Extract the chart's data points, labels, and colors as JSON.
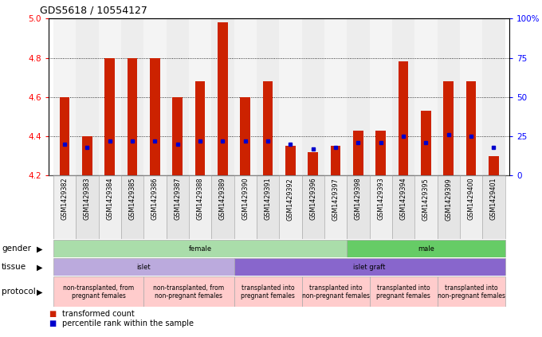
{
  "title": "GDS5618 / 10554127",
  "samples": [
    "GSM1429382",
    "GSM1429383",
    "GSM1429384",
    "GSM1429385",
    "GSM1429386",
    "GSM1429387",
    "GSM1429388",
    "GSM1429389",
    "GSM1429390",
    "GSM1429391",
    "GSM1429392",
    "GSM1429396",
    "GSM1429397",
    "GSM1429398",
    "GSM1429393",
    "GSM1429394",
    "GSM1429395",
    "GSM1429399",
    "GSM1429400",
    "GSM1429401"
  ],
  "transformed_count": [
    4.6,
    4.4,
    4.8,
    4.8,
    4.8,
    4.6,
    4.68,
    4.98,
    4.6,
    4.68,
    4.35,
    4.32,
    4.35,
    4.43,
    4.43,
    4.78,
    4.53,
    4.68,
    4.68,
    4.3
  ],
  "percentile": [
    20,
    18,
    22,
    22,
    22,
    20,
    22,
    22,
    22,
    22,
    20,
    17,
    18,
    21,
    21,
    25,
    21,
    26,
    25,
    18
  ],
  "ylim": [
    4.2,
    5.0
  ],
  "yticks": [
    4.2,
    4.4,
    4.6,
    4.8,
    5.0
  ],
  "right_yticks": [
    0,
    25,
    50,
    75,
    100
  ],
  "right_ylabels": [
    "0",
    "25",
    "50",
    "75",
    "100%"
  ],
  "bar_color": "#cc2200",
  "dot_color": "#0000cc",
  "bar_width": 0.45,
  "gender_regions": [
    {
      "label": "female",
      "start": 0,
      "end": 13,
      "color": "#aaddaa"
    },
    {
      "label": "male",
      "start": 13,
      "end": 20,
      "color": "#66cc66"
    }
  ],
  "tissue_regions": [
    {
      "label": "islet",
      "start": 0,
      "end": 8,
      "color": "#bbaadd"
    },
    {
      "label": "islet graft",
      "start": 8,
      "end": 20,
      "color": "#8866cc"
    }
  ],
  "protocol_regions": [
    {
      "label": "non-transplanted, from\npregnant females",
      "start": 0,
      "end": 4,
      "color": "#ffcccc"
    },
    {
      "label": "non-transplanted, from\nnon-pregnant females",
      "start": 4,
      "end": 8,
      "color": "#ffcccc"
    },
    {
      "label": "transplanted into\npregnant females",
      "start": 8,
      "end": 11,
      "color": "#ffcccc"
    },
    {
      "label": "transplanted into\nnon-pregnant females",
      "start": 11,
      "end": 14,
      "color": "#ffcccc"
    },
    {
      "label": "transplanted into\npregnant females",
      "start": 14,
      "end": 17,
      "color": "#ffcccc"
    },
    {
      "label": "transplanted into\nnon-pregnant females",
      "start": 17,
      "end": 20,
      "color": "#ffcccc"
    }
  ],
  "col_bg_even": "#e0e0e0",
  "col_bg_odd": "#cccccc"
}
